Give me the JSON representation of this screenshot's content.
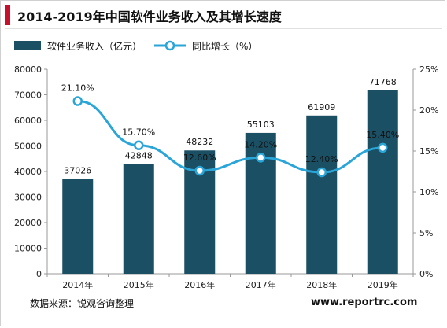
{
  "header": {
    "title": "2014-2019年中国软件业务收入及其增长速度"
  },
  "footer": {
    "source": "数据来源：锐观咨询整理",
    "site": "www.reportrc.com"
  },
  "colors": {
    "accent": "#c8102e",
    "bar": "#1b4f64",
    "line": "#2aa5d8"
  },
  "chart_data": {
    "type": "bar",
    "categories": [
      "2014年",
      "2015年",
      "2016年",
      "2017年",
      "2018年",
      "2019年"
    ],
    "series": [
      {
        "name": "软件业务收入（亿元）",
        "type": "bar",
        "axis": "left",
        "values": [
          37026,
          42848,
          48232,
          55103,
          61909,
          71768
        ]
      },
      {
        "name": "同比增长（%）",
        "type": "line",
        "axis": "right",
        "values": [
          21.1,
          15.7,
          12.6,
          14.2,
          12.4,
          15.4
        ],
        "labels": [
          "21.10%",
          "15.70%",
          "12.60%",
          "14.20%",
          "12.40%",
          "15.40%"
        ]
      }
    ],
    "ylim": [
      0,
      80000
    ],
    "yticks": [
      "0",
      "10000",
      "20000",
      "30000",
      "40000",
      "50000",
      "60000",
      "70000",
      "80000"
    ],
    "y2lim": [
      0,
      25
    ],
    "y2ticks": [
      "0%",
      "5%",
      "10%",
      "15%",
      "20%",
      "25%"
    ],
    "legend_position": "top-left",
    "grid": false
  }
}
